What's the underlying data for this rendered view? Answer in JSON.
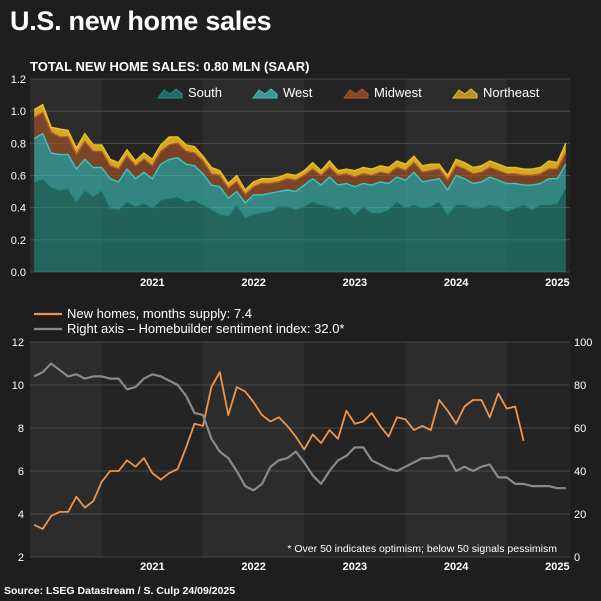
{
  "header": {
    "title": "U.S. new home sales",
    "source": "Source: LSEG Datastream / S. Culp 24/09/2025"
  },
  "colors": {
    "south": "#1f8c80",
    "west": "#3fc4c0",
    "midwest": "#b0562a",
    "northeast": "#f0c020",
    "supply": "#f0954a",
    "sentiment": "#8a8a8a"
  },
  "chart_data": [
    {
      "type": "area",
      "stacked": true,
      "title": "TOTAL NEW HOME SALES: 0.80 MLN (SAAR)",
      "ylim": [
        0,
        1.2
      ],
      "yticks": [
        "0.0",
        "0.2",
        "0.4",
        "0.6",
        "0.8",
        "1.0",
        "1.2"
      ],
      "x_start": "2020-05",
      "x_end": "2025-08",
      "x_tick_labels": [
        "2021",
        "2022",
        "2023",
        "2024",
        "2025"
      ],
      "x": [
        "2020-05",
        "2020-06",
        "2020-07",
        "2020-08",
        "2020-09",
        "2020-10",
        "2020-11",
        "2020-12",
        "2021-01",
        "2021-02",
        "2021-03",
        "2021-04",
        "2021-05",
        "2021-06",
        "2021-07",
        "2021-08",
        "2021-09",
        "2021-10",
        "2021-11",
        "2021-12",
        "2022-01",
        "2022-02",
        "2022-03",
        "2022-04",
        "2022-05",
        "2022-06",
        "2022-07",
        "2022-08",
        "2022-09",
        "2022-10",
        "2022-11",
        "2022-12",
        "2023-01",
        "2023-02",
        "2023-03",
        "2023-04",
        "2023-05",
        "2023-06",
        "2023-07",
        "2023-08",
        "2023-09",
        "2023-10",
        "2023-11",
        "2023-12",
        "2024-01",
        "2024-02",
        "2024-03",
        "2024-04",
        "2024-05",
        "2024-06",
        "2024-07",
        "2024-08",
        "2024-09",
        "2024-10",
        "2024-11",
        "2024-12",
        "2025-01",
        "2025-02",
        "2025-03",
        "2025-04",
        "2025-05",
        "2025-06",
        "2025-07",
        "2025-08"
      ],
      "series": [
        {
          "name": "South",
          "values": [
            0.56,
            0.58,
            0.53,
            0.51,
            0.52,
            0.44,
            0.51,
            0.47,
            0.51,
            0.4,
            0.39,
            0.44,
            0.41,
            0.43,
            0.4,
            0.45,
            0.46,
            0.47,
            0.44,
            0.45,
            0.42,
            0.39,
            0.36,
            0.35,
            0.42,
            0.34,
            0.36,
            0.37,
            0.38,
            0.41,
            0.41,
            0.39,
            0.41,
            0.44,
            0.42,
            0.41,
            0.39,
            0.41,
            0.36,
            0.41,
            0.37,
            0.37,
            0.39,
            0.44,
            0.4,
            0.42,
            0.4,
            0.41,
            0.44,
            0.36,
            0.42,
            0.42,
            0.4,
            0.4,
            0.42,
            0.41,
            0.38,
            0.4,
            0.42,
            0.39,
            0.42,
            0.42,
            0.43,
            0.53
          ]
        },
        {
          "name": "West",
          "values": [
            0.27,
            0.28,
            0.21,
            0.22,
            0.21,
            0.2,
            0.19,
            0.18,
            0.14,
            0.18,
            0.17,
            0.2,
            0.17,
            0.19,
            0.18,
            0.22,
            0.24,
            0.24,
            0.23,
            0.21,
            0.19,
            0.15,
            0.17,
            0.11,
            0.08,
            0.09,
            0.12,
            0.11,
            0.11,
            0.09,
            0.1,
            0.11,
            0.13,
            0.14,
            0.12,
            0.18,
            0.15,
            0.14,
            0.17,
            0.14,
            0.17,
            0.19,
            0.16,
            0.15,
            0.17,
            0.2,
            0.16,
            0.16,
            0.14,
            0.15,
            0.18,
            0.16,
            0.15,
            0.16,
            0.17,
            0.16,
            0.17,
            0.15,
            0.12,
            0.15,
            0.13,
            0.16,
            0.15,
            0.14
          ]
        },
        {
          "name": "Midwest",
          "values": [
            0.13,
            0.13,
            0.13,
            0.11,
            0.11,
            0.09,
            0.11,
            0.1,
            0.1,
            0.08,
            0.08,
            0.08,
            0.08,
            0.08,
            0.08,
            0.08,
            0.09,
            0.09,
            0.08,
            0.08,
            0.08,
            0.07,
            0.07,
            0.06,
            0.06,
            0.05,
            0.05,
            0.07,
            0.06,
            0.06,
            0.07,
            0.07,
            0.06,
            0.06,
            0.06,
            0.06,
            0.06,
            0.06,
            0.06,
            0.06,
            0.06,
            0.06,
            0.06,
            0.06,
            0.06,
            0.06,
            0.06,
            0.06,
            0.06,
            0.06,
            0.06,
            0.06,
            0.06,
            0.06,
            0.06,
            0.06,
            0.06,
            0.06,
            0.06,
            0.06,
            0.06,
            0.06,
            0.06,
            0.07
          ]
        },
        {
          "name": "Northeast",
          "values": [
            0.05,
            0.05,
            0.03,
            0.05,
            0.04,
            0.04,
            0.05,
            0.04,
            0.04,
            0.04,
            0.04,
            0.04,
            0.03,
            0.04,
            0.04,
            0.04,
            0.05,
            0.04,
            0.04,
            0.04,
            0.03,
            0.04,
            0.03,
            0.03,
            0.04,
            0.03,
            0.03,
            0.03,
            0.03,
            0.03,
            0.03,
            0.03,
            0.03,
            0.04,
            0.03,
            0.04,
            0.03,
            0.03,
            0.04,
            0.04,
            0.04,
            0.04,
            0.04,
            0.04,
            0.04,
            0.04,
            0.04,
            0.04,
            0.03,
            0.03,
            0.04,
            0.04,
            0.04,
            0.04,
            0.04,
            0.04,
            0.04,
            0.04,
            0.04,
            0.04,
            0.04,
            0.05,
            0.04,
            0.06
          ]
        }
      ],
      "legend_position": "top-right",
      "grid": true
    },
    {
      "type": "line",
      "dual_axis": true,
      "ylim": [
        2,
        12
      ],
      "yticks": [
        "2",
        "4",
        "6",
        "8",
        "10",
        "12"
      ],
      "y2lim": [
        0,
        100
      ],
      "y2ticks": [
        "0",
        "20",
        "40",
        "60",
        "80",
        "100"
      ],
      "x_start": "2020-05",
      "x_end": "2025-08",
      "x_tick_labels": [
        "2021",
        "2022",
        "2023",
        "2024",
        "2025"
      ],
      "x": [
        "2020-05",
        "2020-06",
        "2020-07",
        "2020-08",
        "2020-09",
        "2020-10",
        "2020-11",
        "2020-12",
        "2021-01",
        "2021-02",
        "2021-03",
        "2021-04",
        "2021-05",
        "2021-06",
        "2021-07",
        "2021-08",
        "2021-09",
        "2021-10",
        "2021-11",
        "2021-12",
        "2022-01",
        "2022-02",
        "2022-03",
        "2022-04",
        "2022-05",
        "2022-06",
        "2022-07",
        "2022-08",
        "2022-09",
        "2022-10",
        "2022-11",
        "2022-12",
        "2023-01",
        "2023-02",
        "2023-03",
        "2023-04",
        "2023-05",
        "2023-06",
        "2023-07",
        "2023-08",
        "2023-09",
        "2023-10",
        "2023-11",
        "2023-12",
        "2024-01",
        "2024-02",
        "2024-03",
        "2024-04",
        "2024-05",
        "2024-06",
        "2024-07",
        "2024-08",
        "2024-09",
        "2024-10",
        "2024-11",
        "2024-12",
        "2025-01",
        "2025-02",
        "2025-03",
        "2025-04",
        "2025-05",
        "2025-06",
        "2025-07",
        "2025-08"
      ],
      "series": [
        {
          "name": "New homes, months supply: 7.4",
          "axis": "left",
          "values": [
            3.5,
            3.3,
            3.9,
            4.1,
            4.1,
            4.8,
            4.3,
            4.6,
            5.5,
            6.0,
            6.0,
            6.5,
            6.2,
            6.6,
            5.9,
            5.6,
            5.9,
            6.1,
            7.1,
            8.2,
            8.1,
            9.9,
            10.6,
            8.6,
            9.9,
            9.7,
            9.2,
            8.6,
            8.3,
            8.5,
            8.1,
            7.6,
            7.0,
            7.7,
            7.3,
            7.9,
            7.5,
            8.8,
            8.2,
            8.3,
            8.7,
            8.1,
            7.6,
            8.5,
            8.4,
            7.9,
            8.1,
            7.9,
            9.3,
            8.8,
            8.2,
            9.0,
            9.3,
            9.3,
            8.5,
            9.6,
            8.9,
            9.0,
            7.4,
            null,
            null,
            null,
            null,
            null
          ]
        },
        {
          "name": "Right axis – Homebuilder sentiment index: 32.0*",
          "axis": "right",
          "values": [
            84,
            86,
            90,
            87,
            84,
            85,
            83,
            84,
            84,
            83,
            83,
            78,
            79,
            83,
            85,
            84,
            82,
            80,
            75,
            67,
            66,
            55,
            49,
            46,
            40,
            33,
            31,
            34,
            42,
            45,
            46,
            49,
            44,
            38,
            34,
            40,
            45,
            47,
            51,
            51,
            45,
            43,
            41,
            40,
            42,
            44,
            46,
            46,
            47,
            47,
            40,
            42,
            40,
            42,
            43,
            37,
            37,
            34,
            34,
            33,
            33,
            33,
            32,
            32
          ]
        }
      ],
      "annotation": "* Over 50 indicates optimism; below 50 signals pessimism",
      "legend_position": "top-left",
      "grid": true
    }
  ]
}
